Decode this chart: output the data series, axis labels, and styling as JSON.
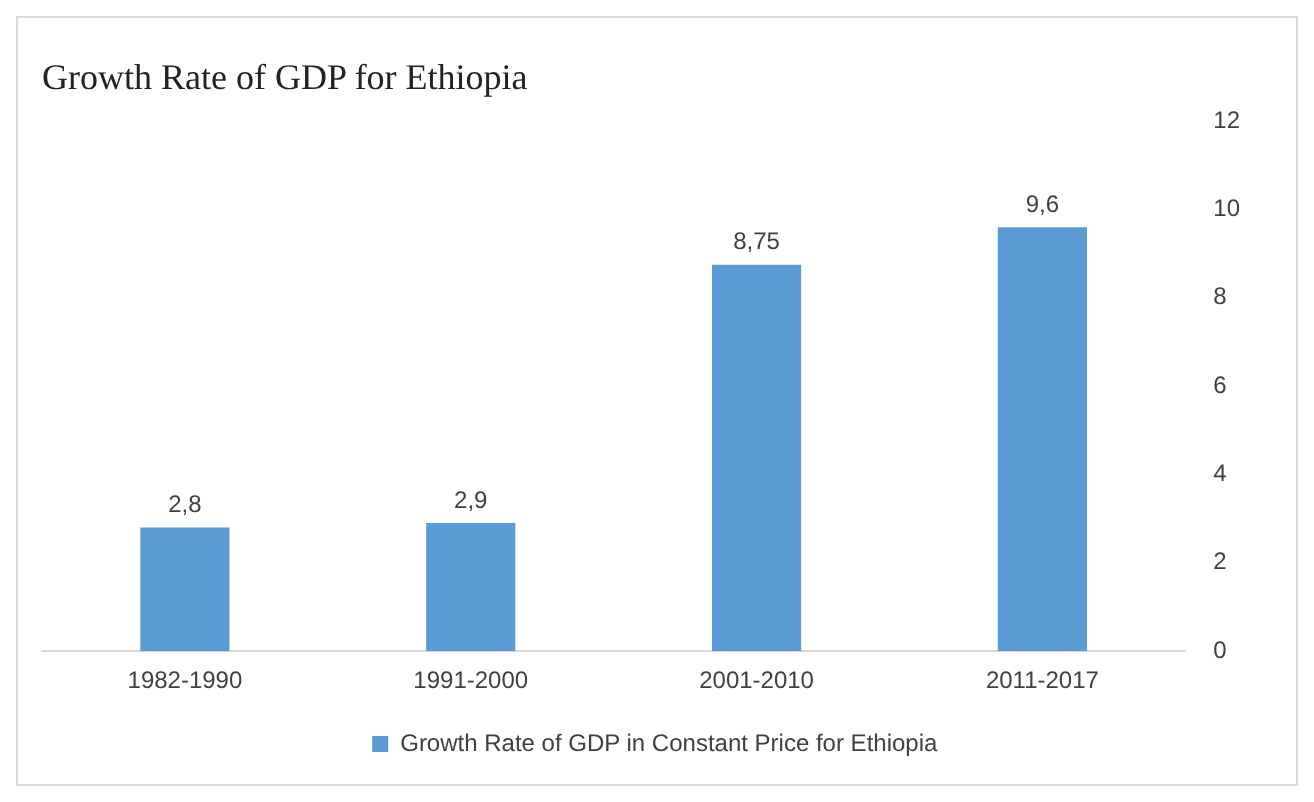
{
  "chart_data": {
    "type": "bar",
    "title": "Growth Rate of GDP for Ethiopia",
    "categories": [
      "1982-1990",
      "1991-2000",
      "2001-2010",
      "2011-2017"
    ],
    "series": [
      {
        "name": "Growth Rate of GDP in Constant Price for Ethiopia",
        "color": "#5b9bd5",
        "values": [
          2.8,
          2.9,
          8.75,
          9.6
        ],
        "value_labels": [
          "2,8",
          "2,9",
          "8,75",
          "9,6"
        ]
      }
    ],
    "ylim": [
      0,
      12
    ],
    "yticks": [
      0,
      2,
      4,
      6,
      8,
      10,
      12
    ],
    "grid": false,
    "legend": "bottom"
  }
}
